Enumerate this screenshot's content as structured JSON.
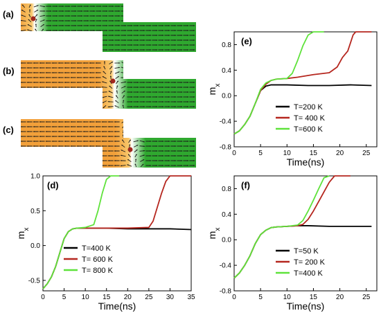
{
  "snapshots": [
    {
      "label": "(a)",
      "wall": "left"
    },
    {
      "label": "(b)",
      "wall": "corner"
    },
    {
      "label": "(c)",
      "wall": "neck"
    }
  ],
  "colors": {
    "orange": "#f2a03a",
    "orange_light": "#f7c66a",
    "green": "#2fa82f",
    "series_black": "#000000",
    "series_red": "#b5261e",
    "series_green": "#5ee23a"
  },
  "chart_data": [
    {
      "panel": "(e)",
      "type": "line",
      "xlabel": "Time(ns)",
      "ylabel": "m",
      "ylabel_sub": "x",
      "xlim": [
        0,
        27
      ],
      "ylim": [
        -0.8,
        1.0
      ],
      "xticks": [
        "0",
        "5",
        "10",
        "15",
        "20",
        "25"
      ],
      "yticks": [
        "-0.8",
        "-0.4",
        "0.0",
        "0.4",
        "0.8"
      ],
      "legend": "bottom-right",
      "series": [
        {
          "name": "T=200 K",
          "color": "#000000",
          "x": [
            0,
            1,
            2,
            3,
            4,
            5,
            6,
            7,
            8,
            10,
            14,
            18,
            22,
            26
          ],
          "y": [
            -0.6,
            -0.55,
            -0.45,
            -0.32,
            -0.12,
            0.08,
            0.15,
            0.17,
            0.17,
            0.17,
            0.16,
            0.16,
            0.17,
            0.16
          ]
        },
        {
          "name": "T= 400 K",
          "color": "#b5261e",
          "x": [
            0,
            1,
            2,
            3,
            4,
            5,
            6,
            7,
            8,
            10,
            12,
            15,
            18,
            19.5,
            20.5,
            21.5,
            22.5,
            23,
            26
          ],
          "y": [
            -0.6,
            -0.55,
            -0.45,
            -0.32,
            -0.12,
            0.08,
            0.18,
            0.24,
            0.26,
            0.27,
            0.29,
            0.33,
            0.36,
            0.45,
            0.6,
            0.7,
            0.95,
            1.0,
            1.0
          ]
        },
        {
          "name": "T=600 K",
          "color": "#5ee23a",
          "x": [
            0,
            1,
            2,
            3,
            4,
            5,
            6,
            7,
            8,
            10,
            11,
            12,
            13,
            14,
            15,
            17
          ],
          "y": [
            -0.6,
            -0.55,
            -0.45,
            -0.32,
            -0.12,
            0.1,
            0.2,
            0.24,
            0.26,
            0.27,
            0.35,
            0.55,
            0.78,
            0.95,
            1.0,
            1.0
          ]
        }
      ]
    },
    {
      "panel": "(d)",
      "type": "line",
      "xlabel": "Time(ns)",
      "ylabel": "m",
      "ylabel_sub": "x",
      "xlim": [
        0,
        35
      ],
      "ylim": [
        -0.65,
        1.0
      ],
      "xticks": [
        "0",
        "5",
        "10",
        "15",
        "20",
        "25",
        "30",
        "35"
      ],
      "yticks": [
        "-0.5",
        "0.0",
        "0.5",
        "1.0"
      ],
      "legend": "bottom-left",
      "series": [
        {
          "name": "T=400 K",
          "color": "#000000",
          "x": [
            0,
            1,
            2,
            3,
            4,
            5,
            6,
            7,
            8,
            10,
            15,
            20,
            25,
            30,
            35
          ],
          "y": [
            -0.62,
            -0.55,
            -0.45,
            -0.3,
            -0.1,
            0.1,
            0.2,
            0.24,
            0.25,
            0.25,
            0.25,
            0.24,
            0.24,
            0.24,
            0.23
          ]
        },
        {
          "name": "T= 600 K",
          "color": "#b5261e",
          "x": [
            0,
            1,
            2,
            3,
            4,
            5,
            6,
            7,
            8,
            10,
            15,
            20,
            25,
            26,
            27,
            28,
            29,
            30,
            35
          ],
          "y": [
            -0.62,
            -0.55,
            -0.45,
            -0.3,
            -0.1,
            0.1,
            0.2,
            0.24,
            0.25,
            0.25,
            0.25,
            0.25,
            0.26,
            0.35,
            0.55,
            0.75,
            0.92,
            1.0,
            1.0
          ]
        },
        {
          "name": "T= 800 K",
          "color": "#5ee23a",
          "x": [
            0,
            1,
            2,
            3,
            4,
            5,
            6,
            7,
            8,
            10,
            12,
            13,
            14,
            15,
            16,
            18
          ],
          "y": [
            -0.62,
            -0.55,
            -0.45,
            -0.3,
            -0.1,
            0.1,
            0.2,
            0.24,
            0.25,
            0.26,
            0.3,
            0.5,
            0.75,
            0.95,
            1.0,
            1.0
          ]
        }
      ]
    },
    {
      "panel": "(f)",
      "type": "line",
      "xlabel": "Time(ns)",
      "ylabel": "m",
      "ylabel_sub": "x",
      "xlim": [
        0,
        27
      ],
      "ylim": [
        -0.8,
        1.0
      ],
      "xticks": [
        "0",
        "5",
        "10",
        "15",
        "20",
        "25"
      ],
      "yticks": [
        "-0.8",
        "-0.4",
        "0.0",
        "0.4",
        "0.8"
      ],
      "legend": "bottom-right",
      "series": [
        {
          "name": "T=50 K",
          "color": "#000000",
          "x": [
            0,
            1,
            2,
            3,
            4,
            5,
            6,
            7,
            8,
            10,
            12,
            14,
            18,
            22,
            26
          ],
          "y": [
            -0.6,
            -0.52,
            -0.4,
            -0.25,
            -0.06,
            0.08,
            0.15,
            0.19,
            0.2,
            0.21,
            0.22,
            0.22,
            0.21,
            0.21,
            0.21
          ]
        },
        {
          "name": "T= 200 K",
          "color": "#b5261e",
          "x": [
            0,
            1,
            2,
            3,
            4,
            5,
            6,
            7,
            8,
            10,
            12,
            13,
            14,
            15,
            16,
            17,
            18,
            19,
            22
          ],
          "y": [
            -0.6,
            -0.52,
            -0.4,
            -0.25,
            -0.06,
            0.08,
            0.15,
            0.19,
            0.2,
            0.21,
            0.22,
            0.24,
            0.32,
            0.45,
            0.6,
            0.75,
            0.9,
            1.0,
            1.0
          ]
        },
        {
          "name": "T=400 K",
          "color": "#5ee23a",
          "x": [
            0,
            1,
            2,
            3,
            4,
            5,
            6,
            7,
            8,
            10,
            12,
            13,
            14,
            15,
            16,
            17,
            18
          ],
          "y": [
            -0.6,
            -0.52,
            -0.4,
            -0.25,
            -0.06,
            0.08,
            0.15,
            0.19,
            0.2,
            0.21,
            0.23,
            0.3,
            0.45,
            0.62,
            0.8,
            0.97,
            1.0
          ]
        }
      ]
    }
  ]
}
